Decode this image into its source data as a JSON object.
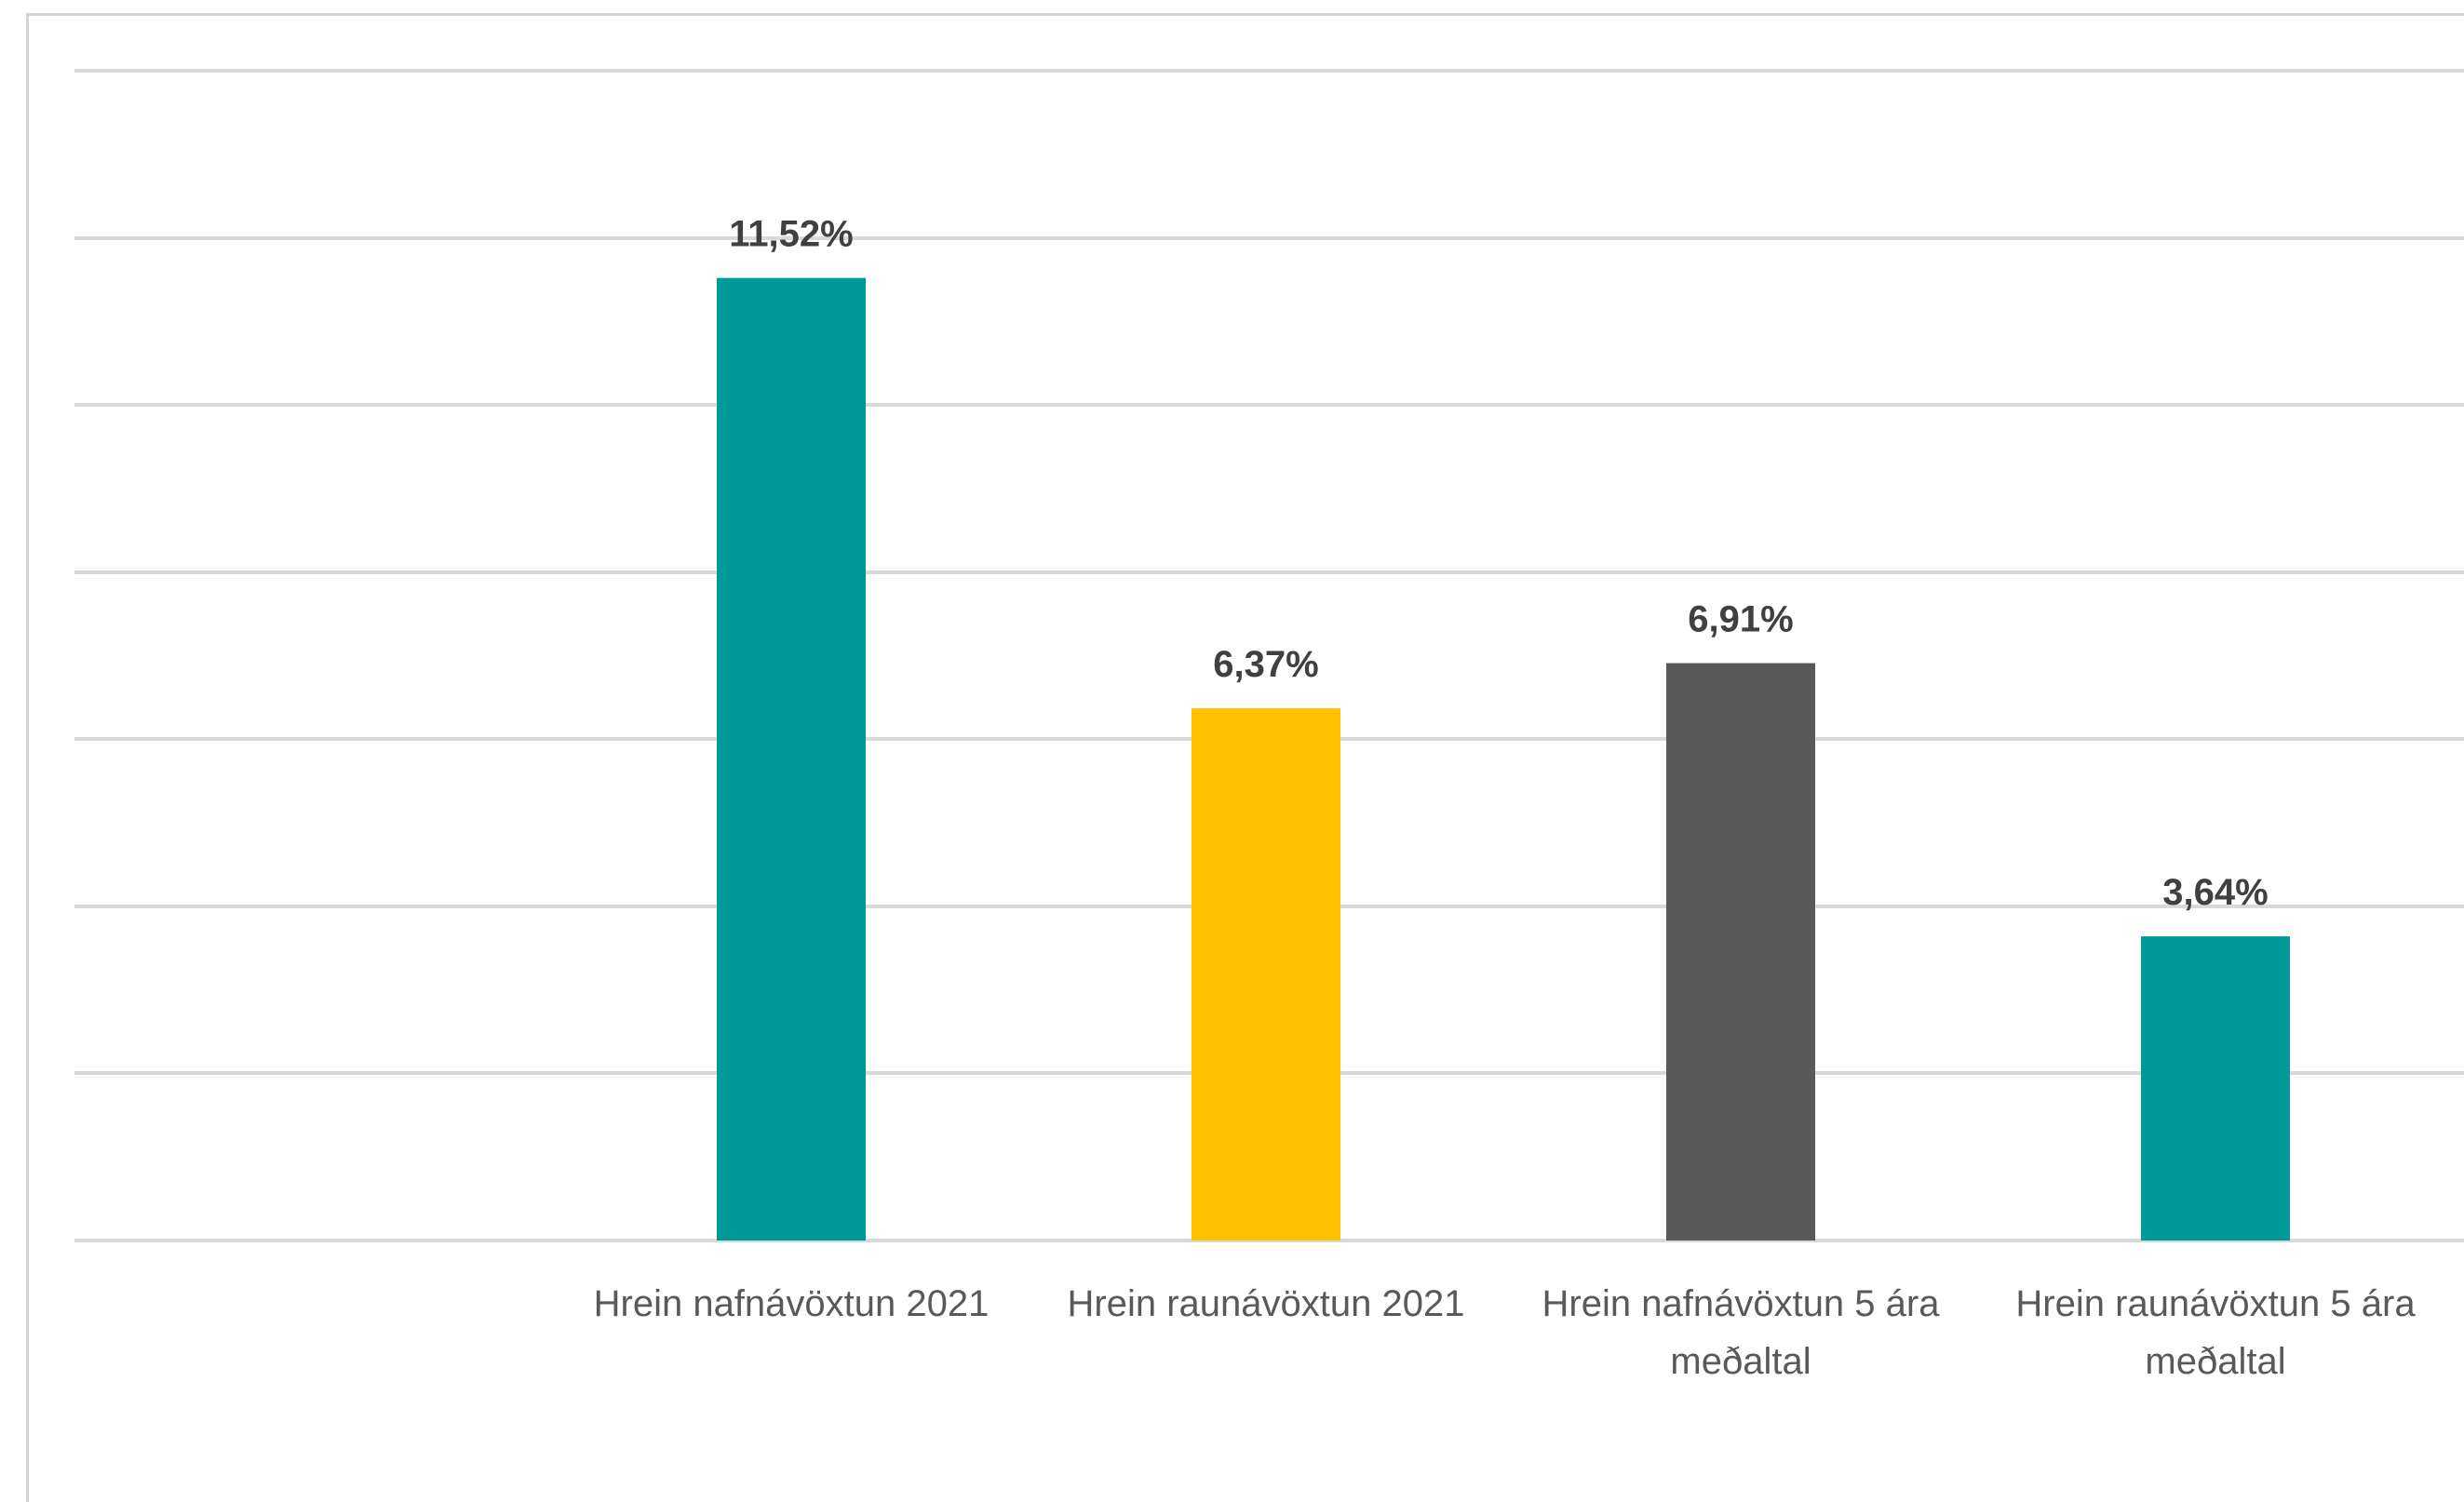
{
  "chart_data": {
    "type": "bar",
    "title": "",
    "xlabel": "",
    "ylabel": "",
    "ylim": [
      0,
      14
    ],
    "grid": true,
    "gridline_step": 2,
    "categories": [
      [
        "Hrein nafnávöxtun 2021"
      ],
      [
        "Hrein raunávöxtun 2021"
      ],
      [
        "Hrein nafnávöxtun 5 ára",
        "meðaltal"
      ],
      [
        "Hrein raunávöxtun 5 ára",
        "meðaltal"
      ]
    ],
    "values": [
      11.52,
      6.37,
      6.91,
      3.64
    ],
    "data_labels": [
      "11,52%",
      "6,37%",
      "6,91%",
      "3,64%"
    ],
    "colors": [
      "#009999",
      "#FFC000",
      "#595959",
      "#009999"
    ]
  }
}
